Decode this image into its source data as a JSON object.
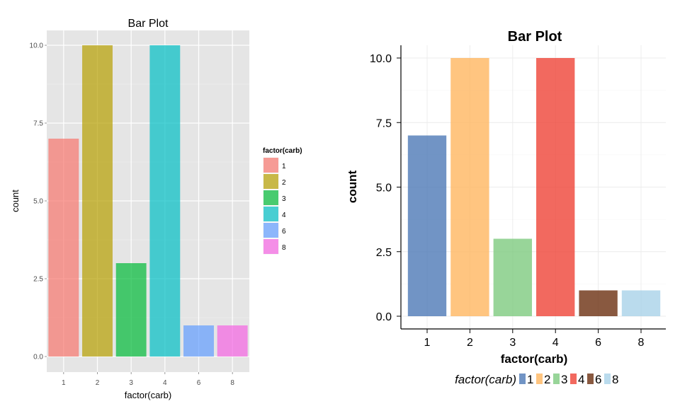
{
  "chart_data": [
    {
      "type": "bar",
      "title": "Bar Plot",
      "xlabel": "factor(carb)",
      "ylabel": "count",
      "categories": [
        "1",
        "2",
        "3",
        "4",
        "6",
        "8"
      ],
      "values": [
        7,
        10,
        3,
        10,
        1,
        1
      ],
      "ylim": [
        0,
        10.5
      ],
      "yticks": [
        "0.0",
        "2.5",
        "5.0",
        "7.5",
        "10.0"
      ],
      "grid": true,
      "background": "#e5e5e5",
      "colors": [
        "#f8766d",
        "#b79f00",
        "#00ba38",
        "#00bfc4",
        "#619cff",
        "#f564e3"
      ],
      "legend": {
        "title": "factor(carb)",
        "position": "right",
        "entries": [
          "1",
          "2",
          "3",
          "4",
          "6",
          "8"
        ]
      }
    },
    {
      "type": "bar",
      "title": "Bar Plot",
      "xlabel": "factor(carb)",
      "ylabel": "count",
      "categories": [
        "1",
        "2",
        "3",
        "4",
        "6",
        "8"
      ],
      "values": [
        7,
        10,
        3,
        10,
        1,
        1
      ],
      "ylim": [
        0,
        10.5
      ],
      "yticks": [
        "0.0",
        "2.5",
        "5.0",
        "7.5",
        "10.0"
      ],
      "grid": true,
      "background": "#ffffff",
      "colors": [
        "#4e79b6",
        "#ffb660",
        "#7ecb80",
        "#ef4437",
        "#6b2f10",
        "#a9d2e8"
      ],
      "legend": {
        "title": "factor(carb)",
        "position": "bottom",
        "entries": [
          "1",
          "2",
          "3",
          "4",
          "6",
          "8"
        ]
      }
    }
  ]
}
